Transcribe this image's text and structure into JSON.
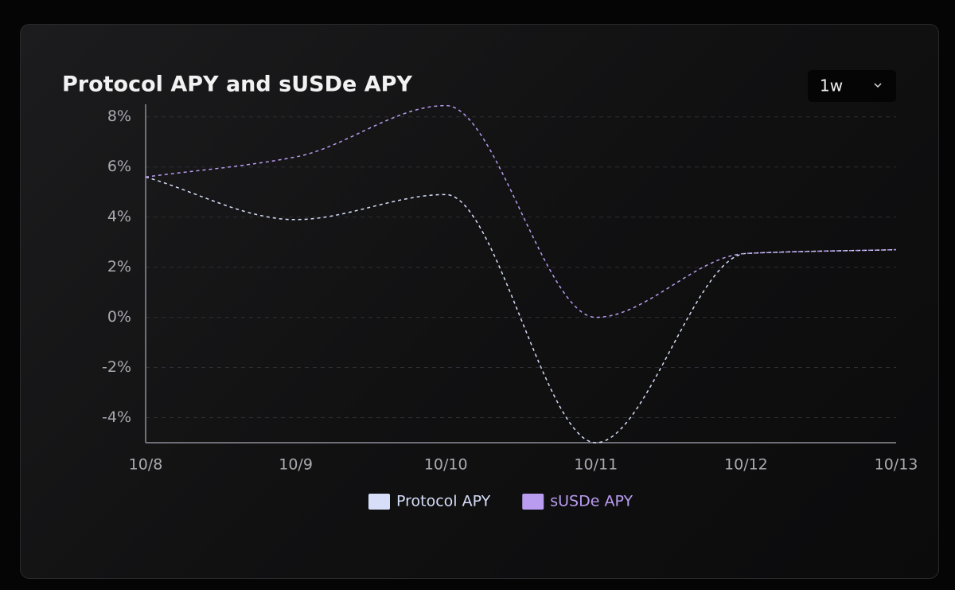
{
  "chart_data": {
    "type": "line",
    "title": "Protocol APY and sUSDe APY",
    "categories": [
      "10/8",
      "10/9",
      "10/10",
      "10/11",
      "10/12",
      "10/13"
    ],
    "series": [
      {
        "name": "Protocol APY",
        "color": "#d6def8",
        "values": [
          5.6,
          3.9,
          4.9,
          -5.0,
          2.55,
          2.7
        ]
      },
      {
        "name": "sUSDe APY",
        "color": "#b99cf0",
        "values": [
          5.6,
          6.4,
          8.45,
          0.0,
          2.55,
          2.7
        ]
      }
    ],
    "ylim": [
      -5,
      8.5
    ],
    "yticks": [
      {
        "value": -4,
        "label": "-4%"
      },
      {
        "value": -2,
        "label": "-2%"
      },
      {
        "value": 0,
        "label": "0%"
      },
      {
        "value": 2,
        "label": "2%"
      },
      {
        "value": 4,
        "label": "4%"
      },
      {
        "value": 6,
        "label": "6%"
      },
      {
        "value": 8,
        "label": "8%"
      }
    ],
    "grid": true,
    "legend": "bottom"
  },
  "controls": {
    "range": "1w"
  }
}
